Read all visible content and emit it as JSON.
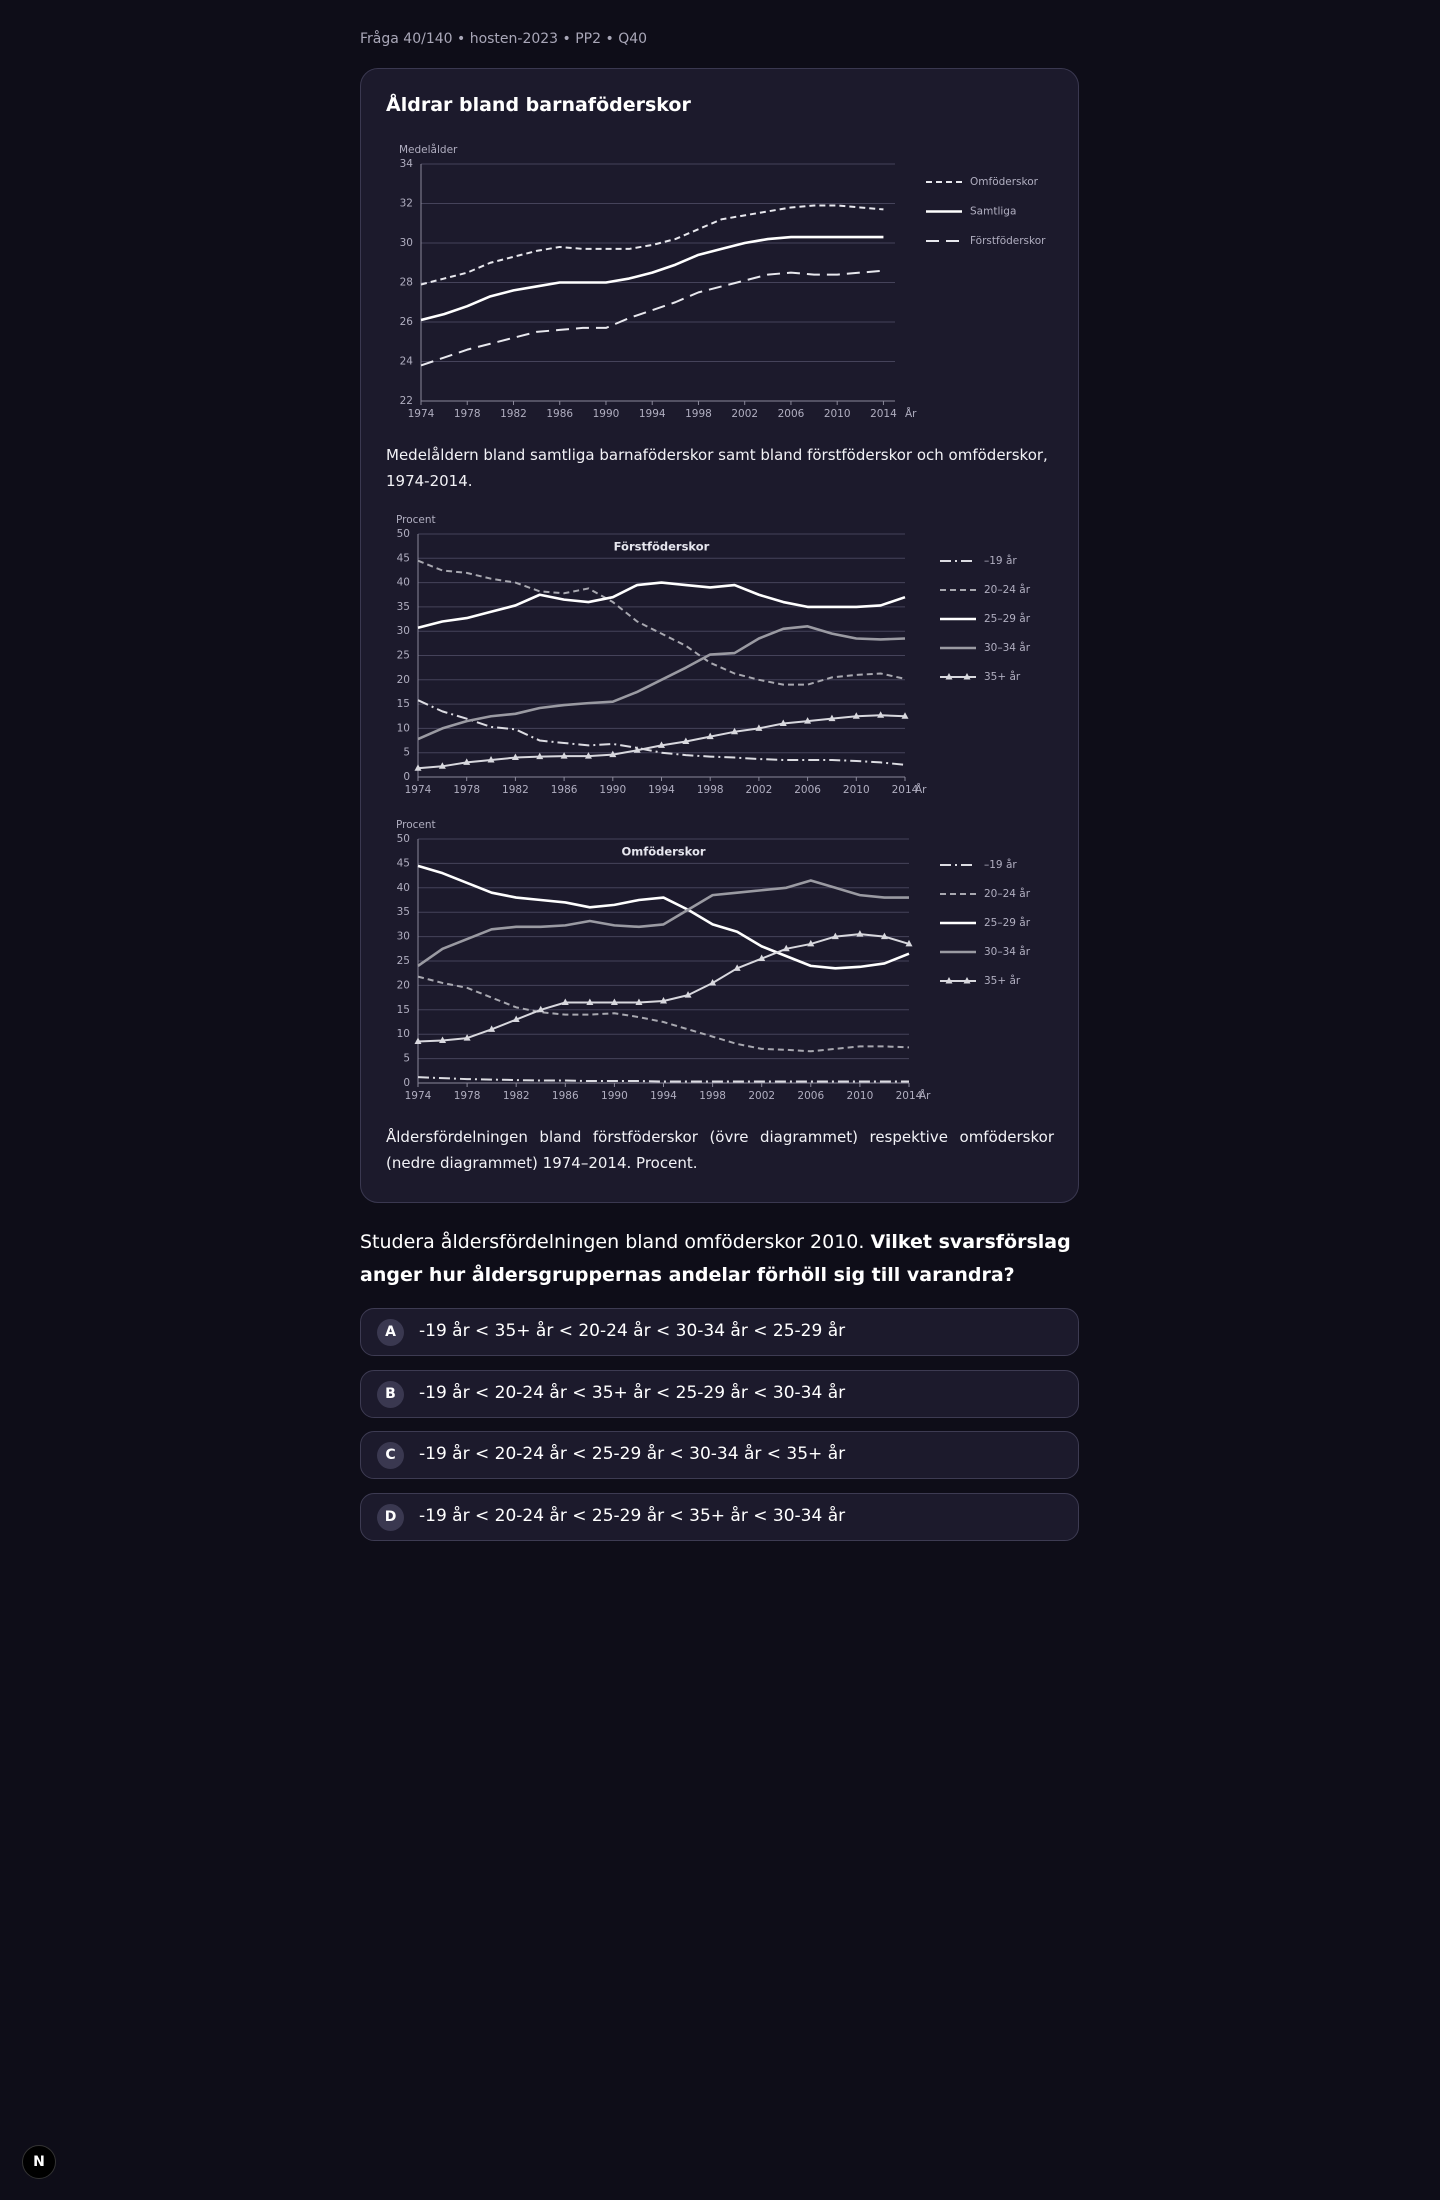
{
  "header": {
    "breadcrumb": "Fråga 40/140 • hosten-2023 • PP2 • Q40"
  },
  "card": {
    "title": "Åldrar bland barnaföderskor",
    "caption1": "Medelåldern bland samtliga barnaföderskor samt bland förstföderskor och omföderskor, 1974-2014.",
    "caption2": "Åldersfördelningen bland förstföderskor (övre diagrammet) respektive omföderskor (nedre diagrammet) 1974–2014. Procent."
  },
  "chart_data": [
    {
      "type": "line",
      "ylabel": "Medelålder",
      "xlabel": "År",
      "x": [
        1974,
        1976,
        1978,
        1980,
        1982,
        1984,
        1986,
        1988,
        1990,
        1992,
        1994,
        1996,
        1998,
        2000,
        2002,
        2004,
        2006,
        2008,
        2010,
        2012,
        2014
      ],
      "xlim": [
        1974,
        2015
      ],
      "xticks": [
        1974,
        1978,
        1982,
        1986,
        1990,
        1994,
        1998,
        2002,
        2006,
        2010,
        2014
      ],
      "ylim": [
        22,
        34
      ],
      "yticks": [
        22,
        24,
        26,
        28,
        30,
        32,
        34
      ],
      "grid": true,
      "series": [
        {
          "name": "Omföderskor",
          "color": "#e8e8ee",
          "style": "dashed",
          "values": [
            27.9,
            28.2,
            28.5,
            29.0,
            29.3,
            29.6,
            29.8,
            29.7,
            29.7,
            29.7,
            29.9,
            30.2,
            30.7,
            31.2,
            31.4,
            31.6,
            31.8,
            31.9,
            31.9,
            31.8,
            31.7
          ]
        },
        {
          "name": "Samtliga",
          "color": "#ffffff",
          "style": "solid",
          "values": [
            26.1,
            26.4,
            26.8,
            27.3,
            27.6,
            27.8,
            28.0,
            28.0,
            28.0,
            28.2,
            28.5,
            28.9,
            29.4,
            29.7,
            30.0,
            30.2,
            30.3,
            30.3,
            30.3,
            30.3,
            30.3
          ]
        },
        {
          "name": "Förstföderskor",
          "color": "#e8e8ee",
          "style": "long-dashed",
          "values": [
            23.8,
            24.2,
            24.6,
            24.9,
            25.2,
            25.5,
            25.6,
            25.7,
            25.7,
            26.2,
            26.6,
            27.0,
            27.5,
            27.8,
            28.1,
            28.4,
            28.5,
            28.4,
            28.4,
            28.5,
            28.6
          ]
        }
      ]
    },
    {
      "type": "line",
      "title": "Förstföderskor",
      "ylabel": "Procent",
      "xlabel": "År",
      "x": [
        1974,
        1976,
        1978,
        1980,
        1982,
        1984,
        1986,
        1988,
        1990,
        1992,
        1994,
        1996,
        1998,
        2000,
        2002,
        2004,
        2006,
        2008,
        2010,
        2012,
        2014
      ],
      "xlim": [
        1974,
        2014
      ],
      "xticks": [
        1974,
        1978,
        1982,
        1986,
        1990,
        1994,
        1998,
        2002,
        2006,
        2010,
        2014
      ],
      "ylim": [
        0,
        50
      ],
      "yticks": [
        0,
        5,
        10,
        15,
        20,
        25,
        30,
        35,
        40,
        45,
        50
      ],
      "grid": true,
      "series": [
        {
          "name": "–19 år",
          "color": "#dcdce2",
          "style": "dash-dot",
          "values": [
            15.8,
            13.5,
            12,
            10.3,
            9.8,
            7.5,
            7,
            6.5,
            6.8,
            6,
            5,
            4.5,
            4.2,
            4,
            3.7,
            3.5,
            3.5,
            3.5,
            3.3,
            3,
            2.5
          ]
        },
        {
          "name": "20–24 år",
          "color": "#a8a8b0",
          "style": "dashed",
          "values": [
            44.5,
            42.5,
            42,
            40.8,
            40,
            38.2,
            37.8,
            38.8,
            36,
            32,
            29.5,
            27,
            23.5,
            21.3,
            20,
            19,
            19,
            20.5,
            21,
            21.3,
            20.2
          ]
        },
        {
          "name": "25–29 år",
          "color": "#ffffff",
          "style": "solid",
          "values": [
            30.7,
            32,
            32.7,
            34,
            35.3,
            37.5,
            36.5,
            36,
            37,
            39.5,
            40,
            39.5,
            39,
            39.5,
            37.5,
            36,
            35,
            35,
            35,
            35.3,
            37
          ]
        },
        {
          "name": "30–34 år",
          "color": "#9a9aa2",
          "style": "solid",
          "values": [
            7.8,
            10,
            11.5,
            12.5,
            13,
            14.2,
            14.8,
            15.2,
            15.5,
            17.5,
            20,
            22.5,
            25.2,
            25.5,
            28.5,
            30.5,
            31,
            29.5,
            28.5,
            28.3,
            28.5
          ]
        },
        {
          "name": "35+ år",
          "color": "#d8d8de",
          "style": "triangles",
          "values": [
            1.8,
            2.2,
            3,
            3.5,
            4,
            4.2,
            4.3,
            4.3,
            4.6,
            5.5,
            6.5,
            7.3,
            8.3,
            9.3,
            10,
            11,
            11.5,
            12,
            12.5,
            12.7,
            12.5
          ]
        }
      ]
    },
    {
      "type": "line",
      "title": "Omföderskor",
      "ylabel": "Procent",
      "xlabel": "År",
      "x": [
        1974,
        1976,
        1978,
        1980,
        1982,
        1984,
        1986,
        1988,
        1990,
        1992,
        1994,
        1996,
        1998,
        2000,
        2002,
        2004,
        2006,
        2008,
        2010,
        2012,
        2014
      ],
      "xlim": [
        1974,
        2014
      ],
      "xticks": [
        1974,
        1978,
        1982,
        1986,
        1990,
        1994,
        1998,
        2002,
        2006,
        2010,
        2014
      ],
      "ylim": [
        0,
        50
      ],
      "yticks": [
        0,
        5,
        10,
        15,
        20,
        25,
        30,
        35,
        40,
        45,
        50
      ],
      "grid": true,
      "series": [
        {
          "name": "–19 år",
          "color": "#dcdce2",
          "style": "dash-dot",
          "values": [
            1.2,
            1,
            0.8,
            0.7,
            0.6,
            0.5,
            0.5,
            0.4,
            0.4,
            0.4,
            0.3,
            0.3,
            0.3,
            0.3,
            0.3,
            0.3,
            0.3,
            0.3,
            0.3,
            0.3,
            0.3
          ]
        },
        {
          "name": "20–24 år",
          "color": "#a8a8b0",
          "style": "dashed",
          "values": [
            21.8,
            20.5,
            19.5,
            17.5,
            15.5,
            14.5,
            14,
            14,
            14.3,
            13.5,
            12.5,
            11,
            9.5,
            8,
            7,
            6.8,
            6.5,
            7,
            7.5,
            7.5,
            7.3
          ]
        },
        {
          "name": "25–29 år",
          "color": "#ffffff",
          "style": "solid",
          "values": [
            44.5,
            43,
            41,
            39,
            38,
            37.5,
            37,
            36,
            36.5,
            37.5,
            38,
            35.5,
            32.5,
            31,
            28,
            26,
            24,
            23.5,
            23.8,
            24.5,
            26.5
          ]
        },
        {
          "name": "30–34 år",
          "color": "#9a9aa2",
          "style": "solid",
          "values": [
            24,
            27.5,
            29.5,
            31.5,
            32,
            32,
            32.3,
            33.2,
            32.3,
            32,
            32.5,
            35.5,
            38.5,
            39,
            39.5,
            40,
            41.5,
            40,
            38.5,
            38,
            38
          ]
        },
        {
          "name": "35+ år",
          "color": "#d8d8de",
          "style": "triangles",
          "values": [
            8.5,
            8.7,
            9.2,
            11,
            13,
            15,
            16.5,
            16.5,
            16.5,
            16.5,
            16.8,
            18,
            20.5,
            23.5,
            25.5,
            27.5,
            28.5,
            30,
            30.5,
            30,
            28.5
          ]
        }
      ]
    }
  ],
  "question": {
    "text": "Studera åldersfördelningen bland omföderskor 2010. ",
    "emphasis": "Vilket svarsförslag anger hur åldersgruppernas andelar förhöll sig till varandra?"
  },
  "options": [
    {
      "letter": "A",
      "text": "-19 år < 35+ år < 20-24 år < 30-34 år < 25-29 år"
    },
    {
      "letter": "B",
      "text": "-19 år < 20-24 år < 35+ år < 25-29 år < 30-34 år"
    },
    {
      "letter": "C",
      "text": "-19 år < 20-24 år < 25-29 år < 30-34 år < 35+ år"
    },
    {
      "letter": "D",
      "text": "-19 år < 20-24 år < 25-29 år < 35+ år < 30-34 år"
    }
  ],
  "badge": "N"
}
